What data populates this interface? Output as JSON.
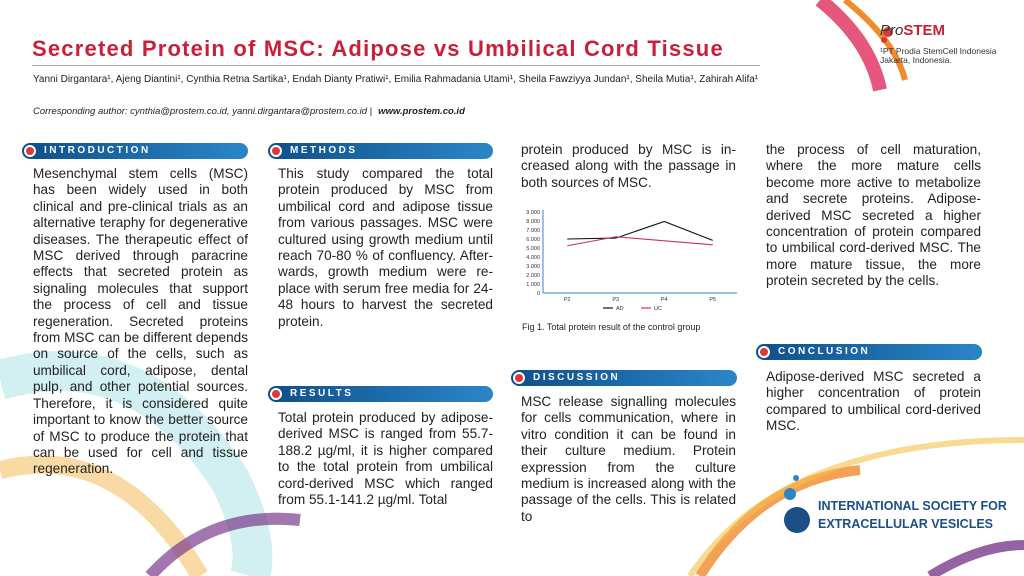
{
  "title": "Secreted Protein of MSC: Adipose vs Umbilical Cord Tissue",
  "authors": "Yanni Dirgantara¹, Ajeng Diantini¹, Cynthia Retna Sartika¹, Endah Dianty Pratiwi¹, Emilia Rahmadania Utami¹, Sheila Fawziyya Jundan¹, Sheila Mutia¹, Zahirah Alifa¹",
  "corresponding": "Corresponding author: cynthia@prostem.co.id, yanni.dirgantara@prostem.co.id   |",
  "website": "www.prostem.co.id",
  "logo": {
    "pro": "Pro",
    "stem": "STEM"
  },
  "affiliation": {
    "line1": "¹PT Prodia StemCell Indonesia",
    "line2": "Jakarta, Indonesia."
  },
  "sections": {
    "introduction": {
      "title": "INTRODUCTION",
      "text": "Mesenchymal stem cells (MSC) has been widely used in both clinical and pre-clinical trials as an alternative teraphy for de­generative diseases. The the­rapeutic effect of MSC derived through paracrine effects that secreted protein as signaling molecules that support the pro­cess of cell and tissue regene­ration. Secreted proteins from MSC can be different depends on source of the cells, such as umbilical cord, adipose, dental pulp, and other potential sour­ces. Therefore, it is considered quite important to know the better source of MSC to pro­duce the protein that can be used for cell and tissue rege­neration."
    },
    "methods": {
      "title": "METHODS",
      "text": "This study compared the total protein produced by MSC from umbilical cord and adipose tissue from various passages. MSC were cultured using growth medium until reach 70-80 % of confluency. After­wards, growth medium were re­place with serum free media for 24-48 hours to harvest the se­creted protein."
    },
    "results": {
      "title": "RESULTS",
      "text": "Total protein produced by adi­pose-derived MSC is ranged from 55.7-188.2 µg/ml, it is higher compared to the total protein from umbilical cord-derived MSC which ranged from 55.1-141.2 µg/ml. Total",
      "continued": "protein produced by MSC is in­creased along with the passage in both sources of MSC."
    },
    "discussion": {
      "title": "DISCUSSION",
      "text": "MSC release signalling mole­cules for cells communication, where in vitro condition it can be found in their culture medium. Protein expression from the culture medium is in­creased along with the passage of the cells. This is related to",
      "continued": "the process of cell maturation, where the more mature cells become more active to metabo­lize and secrete proteins. Adi­pose-derived MSC secreted a higher concentration of protein compared to umbilical cord-derived MSC. The more mature tissue, the more protein secre­ted by the cells."
    },
    "conclusion": {
      "title": "CONCLUSION",
      "text": "Adipose-derived MSC secreted a higher concentration of pro­tein compared to umbilical cord-derived MSC."
    }
  },
  "figure_caption": "Fig 1. Total protein result of the control group",
  "sponsor": {
    "line1": "INTERNATIONAL SOCIETY FOR",
    "line2": "EXTRACELLULAR VESICLES"
  },
  "chart_data": {
    "type": "line",
    "categories": [
      "P2",
      "P3",
      "P4",
      "P5"
    ],
    "series": [
      {
        "name": "AD",
        "color": "#111111",
        "values": [
          6000,
          6100,
          7950,
          5850
        ]
      },
      {
        "name": "UC",
        "color": "#c8325a",
        "values": [
          5250,
          6250,
          5800,
          5350
        ]
      }
    ],
    "yticks": [
      "0",
      "1.000",
      "2.000",
      "3.000",
      "4.000",
      "5.000",
      "6.000",
      "7.000",
      "8.000",
      "9.000"
    ],
    "ylim": [
      0,
      9000
    ],
    "legend": "bottom",
    "grid": false
  }
}
